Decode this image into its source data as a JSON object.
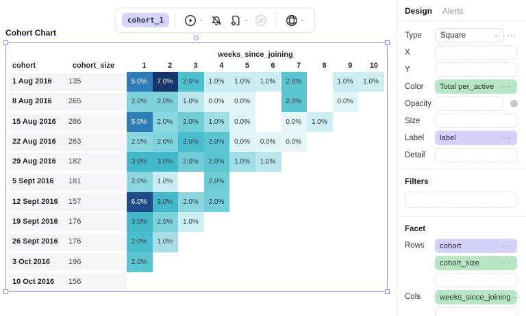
{
  "toolbar": {
    "badge": "cohort_1",
    "icons": [
      "run-icon",
      "notifications-off-icon",
      "export-file-icon",
      "send-icon",
      "globe-icon"
    ],
    "chevron_glyph": "icon",
    "menu_dots_glyph": "icon"
  },
  "canvas": {
    "title": "Cohort Chart"
  },
  "chart_data": {
    "type": "heatmap",
    "title": "Cohort Chart",
    "row_header_labels": [
      "cohort",
      "cohort_size"
    ],
    "col_group_label": "weeks_since_joining",
    "columns": [
      "1",
      "2",
      "3",
      "4",
      "5",
      "6",
      "7",
      "8",
      "9",
      "10"
    ],
    "legend": "Color encodes Total per_active; label shows percentage",
    "rows": [
      {
        "cohort": "1 Aug 2016",
        "cohort_size": "135",
        "cells": [
          {
            "label": "5.0%",
            "color": "#2e7cb8"
          },
          {
            "label": "7.0%",
            "color": "#16356d"
          },
          {
            "label": "2.0%",
            "color": "#4ec1d0"
          },
          {
            "label": "1.0%",
            "color": "#c9edf2"
          },
          {
            "label": "1.0%",
            "color": "#c9edf2"
          },
          {
            "label": "1.0%",
            "color": "#cceef2"
          },
          {
            "label": "2.0%",
            "color": "#5cc5d2"
          },
          null,
          {
            "label": "1.0%",
            "color": "#c9edf2"
          },
          {
            "label": "1.0%",
            "color": "#cfeff3"
          }
        ]
      },
      {
        "cohort": "8 Aug 2016",
        "cohort_size": "265",
        "cells": [
          {
            "label": "2.0%",
            "color": "#7ed3dc"
          },
          {
            "label": "2.0%",
            "color": "#7ed3dc"
          },
          {
            "label": "1.0%",
            "color": "#b9e7ed"
          },
          {
            "label": "0.0%",
            "color": "#e1f4f7"
          },
          {
            "label": "0.0%",
            "color": "#e1f4f7"
          },
          null,
          {
            "label": "2.0%",
            "color": "#5cc5d2"
          },
          null,
          {
            "label": "0.0%",
            "color": "#e1f4f7"
          },
          null
        ]
      },
      {
        "cohort": "15 Aug 2016",
        "cohort_size": "286",
        "cells": [
          {
            "label": "5.0%",
            "color": "#2e7cb8"
          },
          {
            "label": "2.0%",
            "color": "#8bd7e0"
          },
          {
            "label": "2.0%",
            "color": "#70cdd8"
          },
          {
            "label": "1.0%",
            "color": "#a0dde6"
          },
          {
            "label": "0.0%",
            "color": "#e1f4f7"
          },
          null,
          {
            "label": "0.0%",
            "color": "#e7f7f9"
          },
          {
            "label": "1.0%",
            "color": "#cdeef2"
          },
          null,
          null
        ]
      },
      {
        "cohort": "22 Aug 2016",
        "cohort_size": "263",
        "cells": [
          {
            "label": "2.0%",
            "color": "#8bd7e0"
          },
          {
            "label": "2.0%",
            "color": "#7ed3dc"
          },
          {
            "label": "3.0%",
            "color": "#49bece"
          },
          {
            "label": "2.0%",
            "color": "#5cc5d2"
          },
          {
            "label": "0.0%",
            "color": "#e1f4f7"
          },
          {
            "label": "0.0%",
            "color": "#e4f5f8"
          },
          {
            "label": "0.0%",
            "color": "#e7f7f9"
          },
          null,
          null,
          null
        ]
      },
      {
        "cohort": "29 Aug 2016",
        "cohort_size": "182",
        "cells": [
          {
            "label": "3.0%",
            "color": "#43b8ca"
          },
          {
            "label": "3.0%",
            "color": "#43b8ca"
          },
          {
            "label": "2.0%",
            "color": "#70cdd8"
          },
          {
            "label": "2.0%",
            "color": "#5cc5d2"
          },
          {
            "label": "1.0%",
            "color": "#a0dde6"
          },
          {
            "label": "1.0%",
            "color": "#b9e7ed"
          },
          null,
          null,
          null,
          null
        ]
      },
      {
        "cohort": "5 Sept 2016",
        "cohort_size": "181",
        "cells": [
          {
            "label": "2.0%",
            "color": "#8bd7e0"
          },
          {
            "label": "1.0%",
            "color": "#c9edf2"
          },
          null,
          {
            "label": "2.0%",
            "color": "#70cdd8"
          },
          null,
          null,
          null,
          null,
          null,
          null
        ]
      },
      {
        "cohort": "12 Sept 2016",
        "cohort_size": "157",
        "cells": [
          {
            "label": "6.0%",
            "color": "#1d4c89"
          },
          {
            "label": "3.0%",
            "color": "#43b8ca"
          },
          {
            "label": "2.0%",
            "color": "#8bd7e0"
          },
          {
            "label": "2.0%",
            "color": "#72ced8"
          },
          null,
          null,
          null,
          null,
          null,
          null
        ]
      },
      {
        "cohort": "19 Sept 2016",
        "cohort_size": "176",
        "cells": [
          {
            "label": "3.0%",
            "color": "#43b8ca"
          },
          {
            "label": "2.0%",
            "color": "#7ed3dc"
          },
          {
            "label": "1.0%",
            "color": "#cdeef2"
          },
          null,
          null,
          null,
          null,
          null,
          null,
          null
        ]
      },
      {
        "cohort": "26 Sept 2016",
        "cohort_size": "176",
        "cells": [
          {
            "label": "2.0%",
            "color": "#49bece"
          },
          {
            "label": "1.0%",
            "color": "#a6dfe8"
          },
          null,
          null,
          null,
          null,
          null,
          null,
          null,
          null
        ]
      },
      {
        "cohort": "3 Oct 2016",
        "cohort_size": "196",
        "cells": [
          {
            "label": "2.0%",
            "color": "#5cc5d2"
          },
          null,
          null,
          null,
          null,
          null,
          null,
          null,
          null,
          null
        ]
      },
      {
        "cohort": "10 Oct 2016",
        "cohort_size": "156",
        "cells": [
          null,
          null,
          null,
          null,
          null,
          null,
          null,
          null,
          null,
          null
        ]
      }
    ]
  },
  "sidebar": {
    "tabs": [
      {
        "label": "Design",
        "active": true
      },
      {
        "label": "Alerts",
        "active": false
      }
    ],
    "properties": {
      "type": {
        "label": "Type",
        "value": "Square"
      },
      "x": {
        "label": "X"
      },
      "y": {
        "label": "Y"
      },
      "color": {
        "label": "Color",
        "value": "Total per_active",
        "pill_color": "#b9e6c4"
      },
      "opacity": {
        "label": "Opacity"
      },
      "size": {
        "label": "Size"
      },
      "labelf": {
        "label": "Label",
        "value": "label",
        "pill_color": "#d4d1fa"
      },
      "detail": {
        "label": "Detail"
      }
    },
    "filters": {
      "heading": "Filters"
    },
    "facet": {
      "heading": "Facet",
      "rows_label": "Rows",
      "cols_label": "Cols",
      "rows_pills": [
        {
          "value": "cohort",
          "color": "purple"
        },
        {
          "value": "cohort_size",
          "color": "green"
        }
      ],
      "cols_pills": [
        {
          "value": "weeks_since_joining",
          "color": "green"
        }
      ]
    }
  },
  "colors": {
    "accent_purple": "#d4d1fa",
    "accent_green": "#b9e6c4",
    "selection_border": "#9a92ee",
    "heatmap_darkest": "#16356d",
    "heatmap_lightest": "#e7f7f9"
  }
}
